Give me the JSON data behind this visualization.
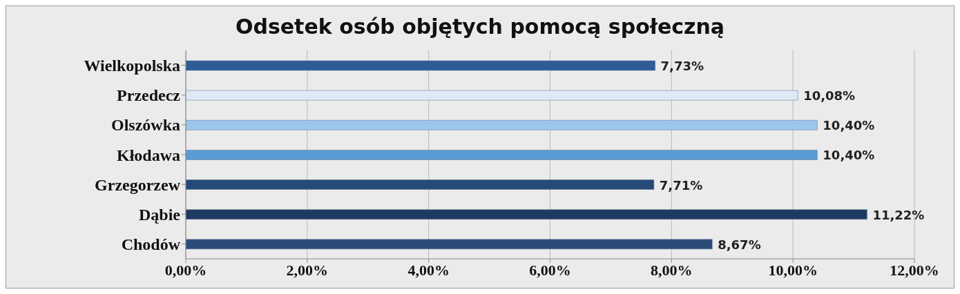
{
  "chart_data": {
    "type": "bar",
    "orientation": "horizontal",
    "title": "Odsetek osób objętych pomocą społeczną",
    "categories": [
      "Wielkopolska",
      "Przedecz",
      "Olszówka",
      "Kłodawa",
      "Grzegorzew",
      "Dąbie",
      "Chodów"
    ],
    "values": [
      7.73,
      10.08,
      10.4,
      10.4,
      7.71,
      11.22,
      8.67
    ],
    "colors": [
      "#2e5c96",
      "#dfe9f5",
      "#9cc6ec",
      "#5b9bd5",
      "#254a78",
      "#1f3a60",
      "#2b4c78"
    ],
    "value_labels": [
      "7,73%",
      "10,08%",
      "10,40%",
      "10,40%",
      "7,71%",
      "11,22%",
      "8,67%"
    ],
    "xlim": [
      0,
      12
    ],
    "xticks": [
      {
        "value": 0,
        "label": "0,00%"
      },
      {
        "value": 2,
        "label": "2,00%"
      },
      {
        "value": 4,
        "label": "4,00%"
      },
      {
        "value": 6,
        "label": "6,00%"
      },
      {
        "value": 8,
        "label": "8,00%"
      },
      {
        "value": 10,
        "label": "10,00%"
      },
      {
        "value": 12,
        "label": "12,00%"
      }
    ],
    "grid": "x",
    "legend": false
  }
}
